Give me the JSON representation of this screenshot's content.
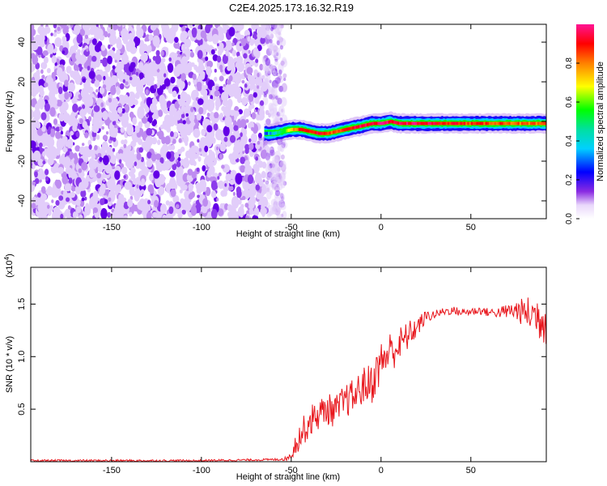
{
  "title": "C2E4.2025.173.16.32.R19",
  "chart_data": [
    {
      "type": "heatmap",
      "xlabel": "Height of straight line (km)",
      "ylabel": "Frequency (Hz)",
      "xlim": [
        -195,
        92
      ],
      "ylim": [
        -49,
        49
      ],
      "xticks": [
        -150,
        -100,
        -50,
        0,
        50
      ],
      "yticks": [
        -40,
        -20,
        0,
        20,
        40
      ],
      "noise_region_x": [
        -195,
        -58
      ],
      "ridge": {
        "x": [
          -65,
          -60,
          -55,
          -50,
          -45,
          -40,
          -35,
          -30,
          -25,
          -20,
          -15,
          -10,
          -5,
          0,
          5,
          10,
          15,
          20,
          25,
          30,
          40,
          50,
          60,
          70,
          80,
          92
        ],
        "freq": [
          -6,
          -6,
          -5,
          -4,
          -4,
          -5,
          -6,
          -6,
          -5,
          -4,
          -3,
          -2,
          -1,
          -1,
          0,
          -1,
          -1,
          -1,
          -1,
          -1,
          -1,
          -1,
          -1,
          -1,
          -1,
          -1
        ],
        "peak_amplitude": [
          0.3,
          0.4,
          0.55,
          0.75,
          0.9,
          0.9,
          0.9,
          0.85,
          0.8,
          0.85,
          0.95,
          0.95,
          0.95,
          0.95,
          0.95,
          0.95,
          0.95,
          0.95,
          0.95,
          0.9,
          0.9,
          0.85,
          0.85,
          0.85,
          0.8,
          0.8
        ]
      },
      "colorbar": {
        "label": "Normalized spectral amplitude",
        "range": [
          0,
          1
        ],
        "ticks": [
          0.0,
          0.2,
          0.4,
          0.6,
          0.8
        ]
      },
      "grid": false
    },
    {
      "type": "line",
      "xlabel": "Height of straight line (km)",
      "ylabel": "SNR (10 * v/v)",
      "exponent_label": "(x10",
      "exponent_power": "4",
      "exponent_close": ")",
      "xlim": [
        -195,
        92
      ],
      "ylim": [
        0,
        1.85
      ],
      "xticks": [
        -150,
        -100,
        -50,
        0,
        50
      ],
      "yticks": [
        0.5,
        1.0,
        1.5
      ],
      "ytick_labels": [
        "0.5",
        "1.0",
        "1.5"
      ],
      "series": [
        {
          "color": "#e8161c",
          "x": [
            -195,
            -150,
            -100,
            -60,
            -52,
            -50,
            -48,
            -46,
            -44,
            -42,
            -40,
            -35,
            -30,
            -25,
            -20,
            -15,
            -10,
            -5,
            0,
            5,
            10,
            15,
            20,
            25,
            30,
            35,
            40,
            45,
            50,
            55,
            60,
            65,
            70,
            75,
            80,
            85,
            92
          ],
          "values": [
            0.01,
            0.01,
            0.01,
            0.02,
            0.03,
            0.08,
            0.15,
            0.22,
            0.28,
            0.32,
            0.38,
            0.45,
            0.5,
            0.48,
            0.58,
            0.62,
            0.72,
            0.75,
            0.95,
            1.05,
            1.1,
            1.2,
            1.28,
            1.38,
            1.4,
            1.43,
            1.44,
            1.42,
            1.43,
            1.44,
            1.42,
            1.42,
            1.43,
            1.44,
            1.42,
            1.4,
            1.35
          ],
          "noise_amplitude": [
            0.01,
            0.01,
            0.01,
            0.01,
            0.02,
            0.06,
            0.1,
            0.12,
            0.14,
            0.14,
            0.15,
            0.15,
            0.15,
            0.16,
            0.16,
            0.17,
            0.18,
            0.2,
            0.2,
            0.2,
            0.18,
            0.14,
            0.1,
            0.06,
            0.04,
            0.04,
            0.04,
            0.04,
            0.04,
            0.04,
            0.04,
            0.05,
            0.07,
            0.1,
            0.14,
            0.2,
            0.26
          ]
        }
      ],
      "grid": false
    }
  ]
}
